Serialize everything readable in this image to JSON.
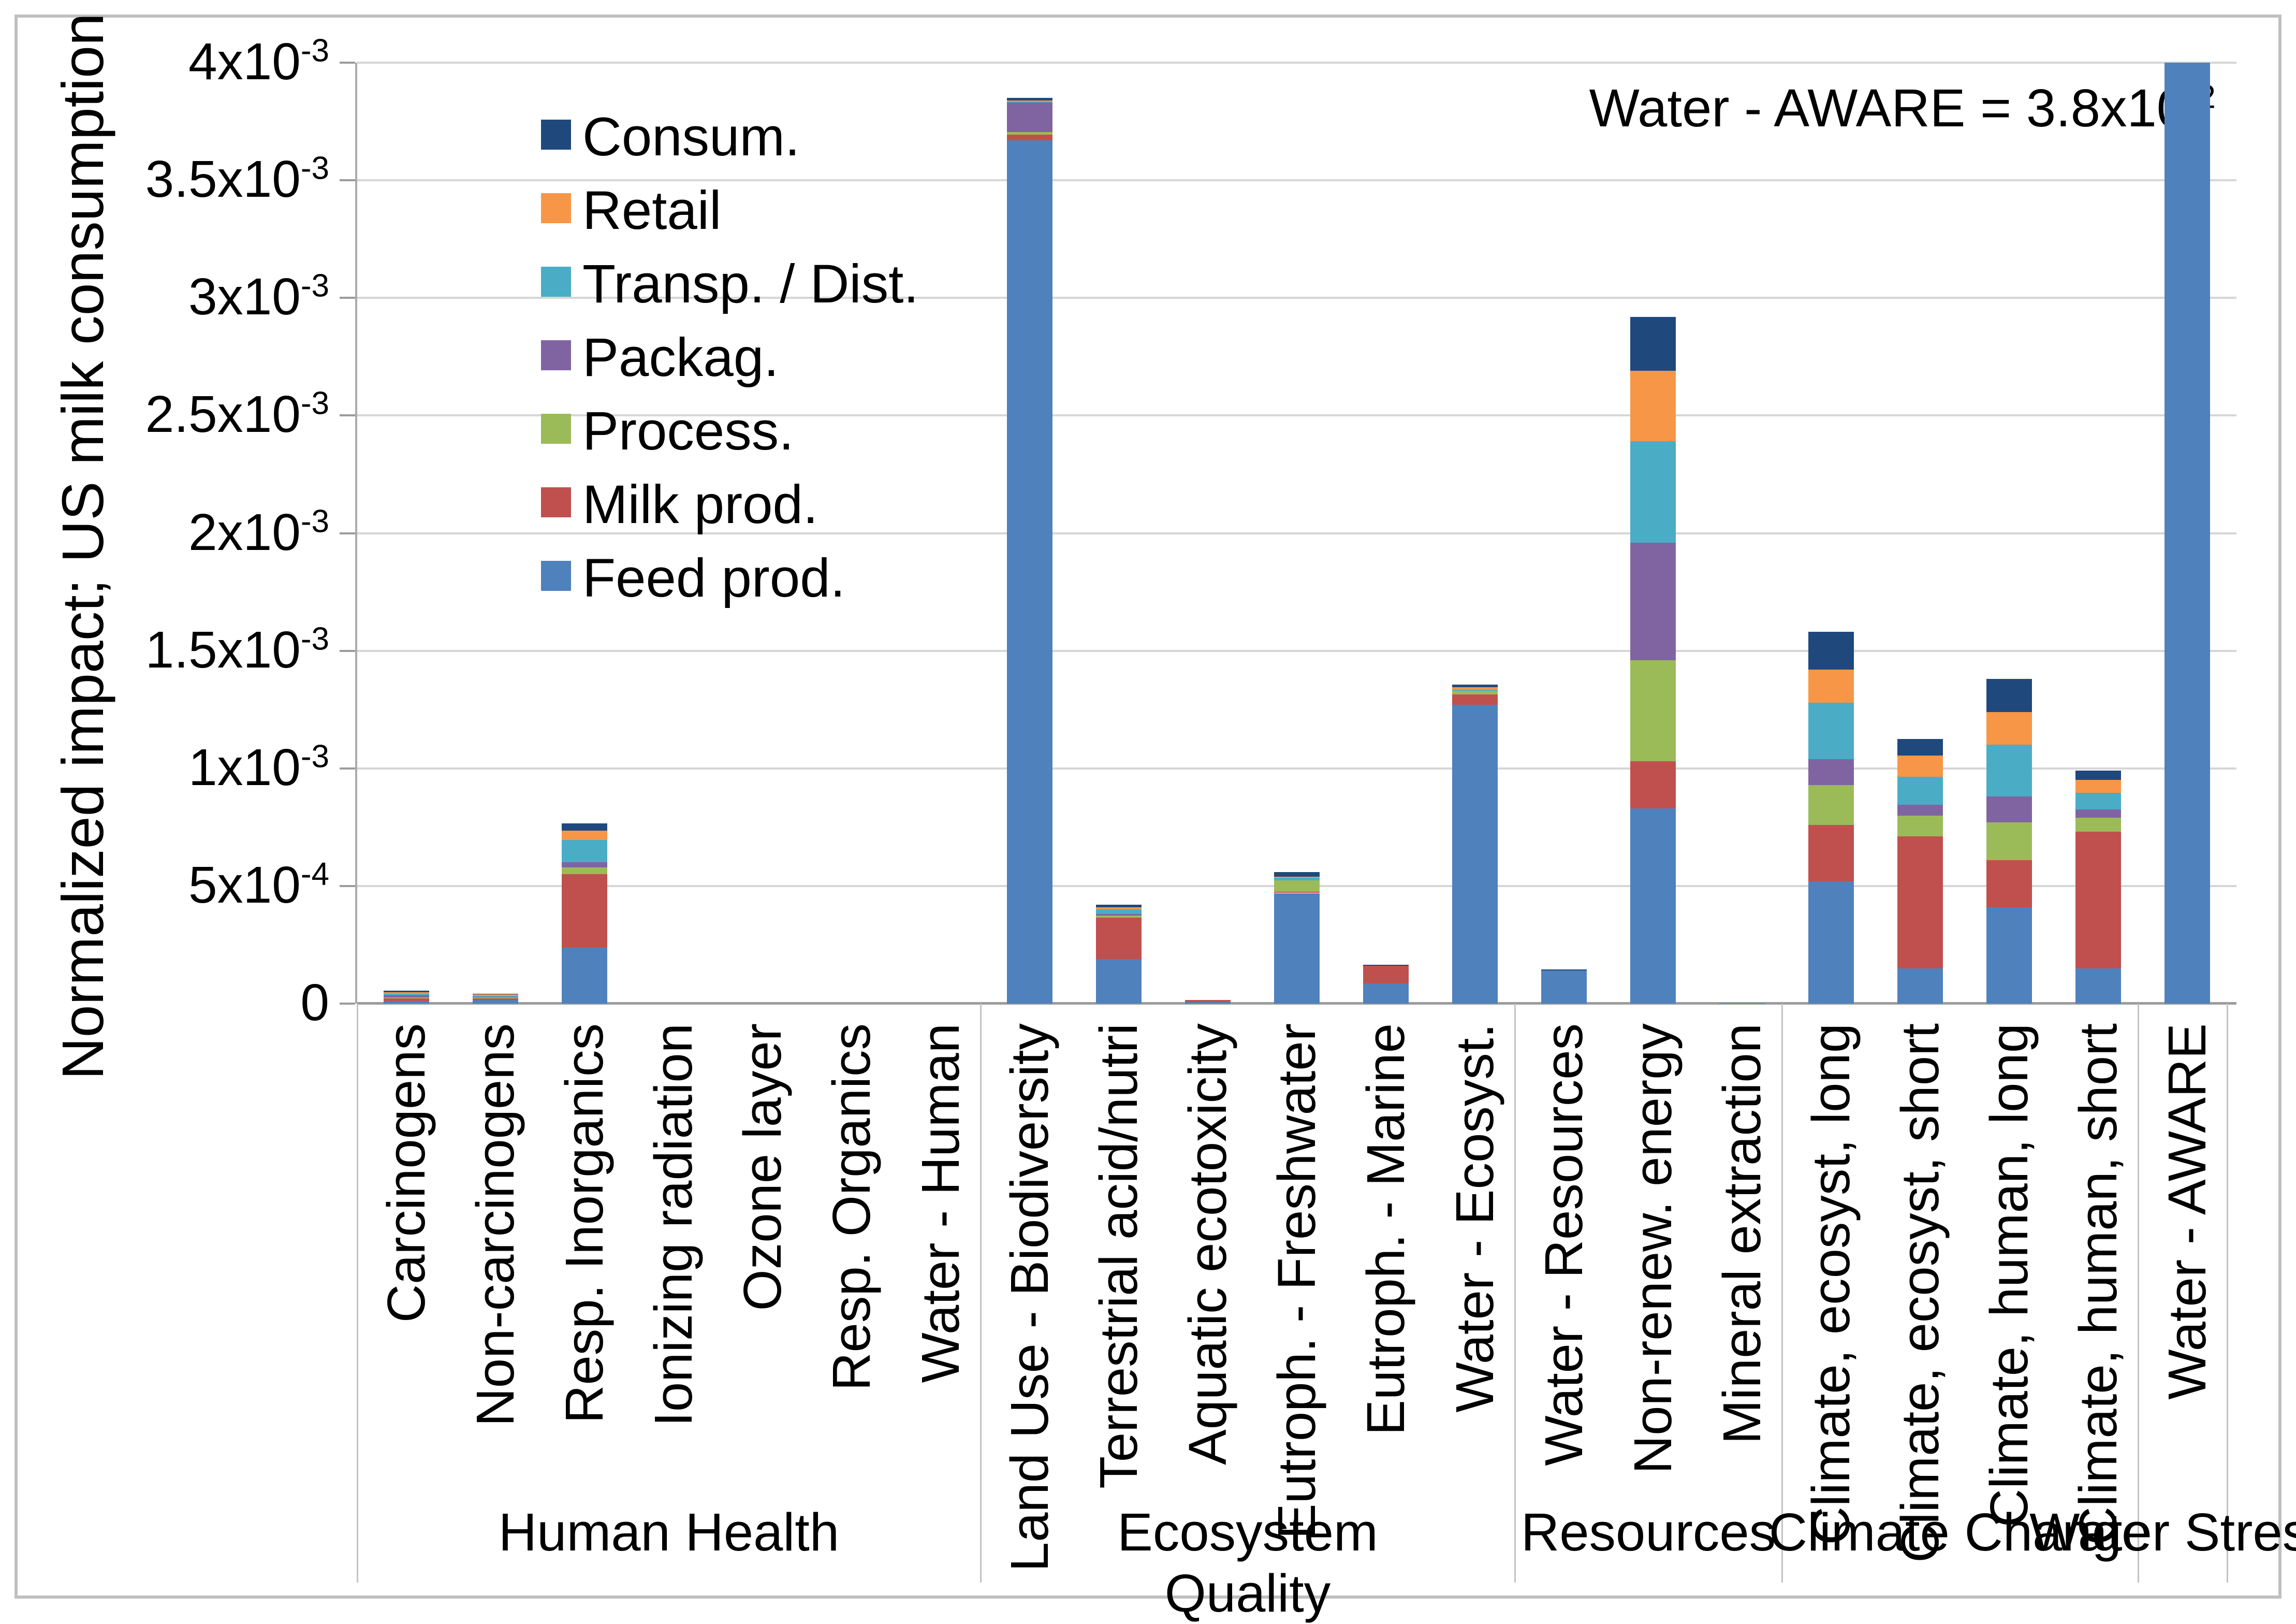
{
  "chart_data": {
    "type": "bar",
    "stacked": true,
    "title": "",
    "ylabel": "Normalized impact; US milk consumption",
    "ylim": [
      0,
      0.004
    ],
    "grid": true,
    "legend_position": "upper-left-inside",
    "annotation": {
      "text": "Water - AWARE = 3.8x10",
      "sup": "-2"
    },
    "yticks": [
      {
        "m": "0"
      },
      {
        "m": "5x10",
        "e": "-4"
      },
      {
        "m": "1x10",
        "e": "-3"
      },
      {
        "m": "1.5x10",
        "e": "-3"
      },
      {
        "m": "2x10",
        "e": "-3"
      },
      {
        "m": "2.5x10",
        "e": "-3"
      },
      {
        "m": "3x10",
        "e": "-3"
      },
      {
        "m": "3.5x10",
        "e": "-3"
      },
      {
        "m": "4x10",
        "e": "-3"
      }
    ],
    "categories": [
      "Carcinogens",
      "Non-carcinogens",
      "Resp. Inorganics",
      "Ionizing radiation",
      "Ozone layer",
      "Resp. Organics",
      "Water - Human",
      "Land Use - Biodiversity",
      "Terrestrial acid/nutri",
      "Aquatic ecotoxicity",
      "Eutroph. - Freshwater",
      "Eutroph. - Marine",
      "Water - Ecosyst.",
      "Water - Resources",
      "Non-renew. energy",
      "Mineral extraction",
      "Climate, ecosyst, long",
      "Climate, ecosyst, short",
      "Climate, human, long",
      "Climate, human, short",
      "Water - AWARE"
    ],
    "groups": [
      {
        "label": "Human Health",
        "span": 7
      },
      {
        "label": "Ecosystem Quality",
        "span": 6
      },
      {
        "label": "Resources",
        "span": 3
      },
      {
        "label": "Climate Change",
        "span": 4
      },
      {
        "label": "Water Stress",
        "span": 1
      }
    ],
    "series": [
      {
        "name": "Feed prod.",
        "color": "#4F81BD",
        "values": [
          1.2e-05,
          1.5e-05,
          0.00024,
          0,
          0,
          0,
          0,
          0.00367,
          0.00019,
          6e-06,
          0.00047,
          8.5e-05,
          0.00127,
          0.00014,
          0.00083,
          2e-06,
          0.00052,
          0.00015,
          0.00041,
          0.00015,
          0.038
        ]
      },
      {
        "name": "Milk prod.",
        "color": "#C0504D",
        "values": [
          1e-05,
          8e-06,
          0.00031,
          0,
          0,
          0,
          0,
          2.5e-05,
          0.000175,
          1e-05,
          5e-06,
          7.5e-05,
          4.5e-05,
          0,
          0.0002,
          0,
          0.00024,
          0.00056,
          0.0002,
          0.00058,
          0
        ]
      },
      {
        "name": "Process.",
        "color": "#9BBB59",
        "values": [
          4e-06,
          3e-06,
          3e-05,
          0,
          0,
          0,
          0,
          1e-05,
          1e-05,
          0,
          5e-05,
          0,
          1.5e-05,
          0,
          0.00043,
          0,
          0.00017,
          9e-05,
          0.00016,
          6e-05,
          0
        ]
      },
      {
        "name": "Packag.",
        "color": "#8064A2",
        "values": [
          1e-05,
          3e-06,
          2e-05,
          0,
          0,
          0,
          0,
          0.000125,
          5e-06,
          0,
          0,
          0,
          0,
          0,
          0.0005,
          0,
          0.00011,
          4.5e-05,
          0.00011,
          3.5e-05,
          0
        ]
      },
      {
        "name": "Transp. / Dist.",
        "color": "#4BACC6",
        "values": [
          5e-06,
          5e-06,
          9.5e-05,
          0,
          0,
          0,
          0,
          5e-06,
          2e-05,
          0,
          1e-05,
          0,
          5e-06,
          0,
          0.00043,
          0,
          0.00024,
          0.00012,
          0.00022,
          7e-05,
          0
        ]
      },
      {
        "name": "Retail",
        "color": "#F79646",
        "values": [
          7e-06,
          5e-06,
          4e-05,
          0,
          0,
          0,
          0,
          5e-06,
          1e-05,
          0,
          5e-06,
          0,
          1e-05,
          0,
          0.0003,
          0,
          0.00014,
          9e-05,
          0.00014,
          5.5e-05,
          0
        ]
      },
      {
        "name": "Consum.",
        "color": "#1F497D",
        "values": [
          7e-06,
          3e-06,
          3e-05,
          0,
          0,
          0,
          0,
          1e-05,
          1e-05,
          0,
          2e-05,
          5e-06,
          1e-05,
          5e-06,
          0.00023,
          0,
          0.00016,
          7e-05,
          0.00014,
          4e-05,
          0
        ]
      }
    ],
    "off_scale_values": {
      "Water - AWARE": 0.038
    }
  }
}
